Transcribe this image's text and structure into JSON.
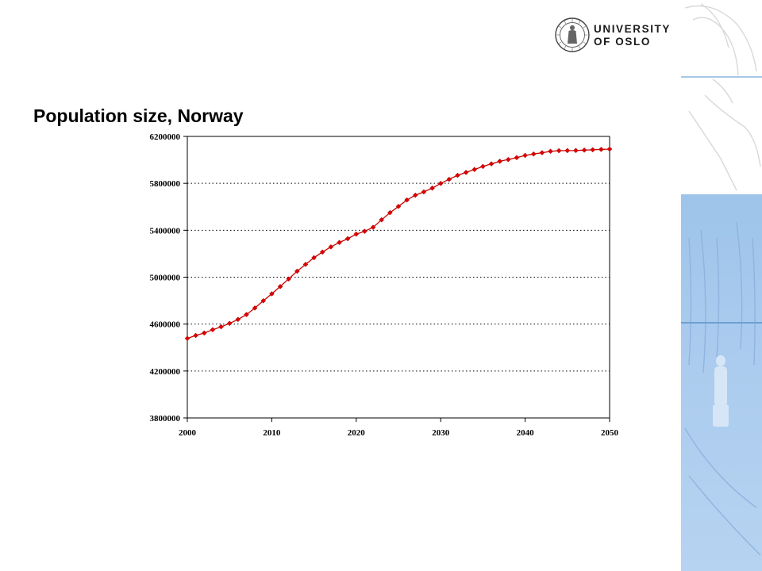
{
  "header": {
    "logo_line1": "UNIVERSITY",
    "logo_line2": "OF OSLO",
    "logo_icon": "university-seal-icon"
  },
  "slide": {
    "title": "Population size, Norway"
  },
  "colors": {
    "series": "#cc0000",
    "marker": "#dd0000",
    "grid": "#000000",
    "panel_blue": "#a8c8ec",
    "panel_line": "#6f9fd3"
  },
  "chart_data": {
    "type": "line",
    "title": "Population size, Norway",
    "xlabel": "",
    "ylabel": "",
    "xlim": [
      2000,
      2050
    ],
    "ylim": [
      3800000,
      6200000
    ],
    "x_ticks": [
      2000,
      2010,
      2020,
      2030,
      2040,
      2050
    ],
    "y_ticks": [
      3800000,
      4200000,
      4600000,
      5000000,
      5400000,
      5800000,
      6200000
    ],
    "grid": "horizontal dotted",
    "legend": "none",
    "series": [
      {
        "x": [
          2000,
          2001,
          2002,
          2003,
          2004,
          2005,
          2006,
          2007,
          2008,
          2009,
          2010,
          2011,
          2012,
          2013,
          2014,
          2015,
          2016,
          2017,
          2018,
          2019,
          2020,
          2021,
          2022,
          2023,
          2024,
          2025,
          2026,
          2027,
          2028,
          2029,
          2030,
          2031,
          2032,
          2033,
          2034,
          2035,
          2036,
          2037,
          2038,
          2039,
          2040,
          2041,
          2042,
          2043,
          2044,
          2045,
          2046,
          2047,
          2048,
          2049,
          2050
        ],
        "values": [
          4478000,
          4503000,
          4524000,
          4552000,
          4577000,
          4606000,
          4640000,
          4681000,
          4737000,
          4799000,
          4858000,
          4920000,
          4985000,
          5051000,
          5109000,
          5166000,
          5214000,
          5258000,
          5296000,
          5328000,
          5367000,
          5391000,
          5425000,
          5489000,
          5550000,
          5603000,
          5658000,
          5699000,
          5727000,
          5759000,
          5799000,
          5834000,
          5868000,
          5893000,
          5918000,
          5944000,
          5966000,
          5988000,
          6003000,
          6019000,
          6038000,
          6050000,
          6061000,
          6073000,
          6078000,
          6079000,
          6080000,
          6083000,
          6086000,
          6089000,
          6092000
        ]
      }
    ]
  }
}
